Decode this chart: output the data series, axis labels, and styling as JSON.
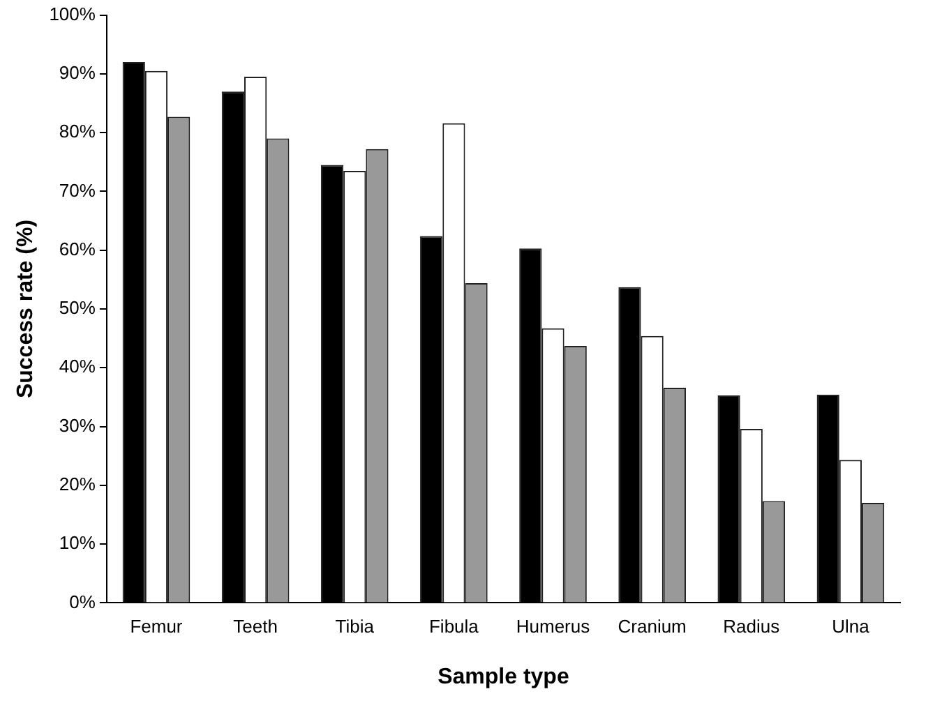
{
  "chart_data": {
    "type": "bar",
    "xlabel": "Sample type",
    "ylabel": "Success rate (%)",
    "categories": [
      "Femur",
      "Teeth",
      "Tibia",
      "Fibula",
      "Humerus",
      "Cranium",
      "Radius",
      "Ulna"
    ],
    "series": [
      {
        "color": "#000000",
        "values": [
          92,
          87,
          74.5,
          62.4,
          60.3,
          53.7,
          35.3,
          35.4
        ]
      },
      {
        "color": "#ffffff",
        "values": [
          90.5,
          89.5,
          73.5,
          81.6,
          46.7,
          45.4,
          29.6,
          24.3
        ]
      },
      {
        "color": "#999999",
        "values": [
          82.7,
          79,
          77.2,
          54.4,
          43.7,
          36.6,
          17.3,
          17
        ]
      }
    ],
    "ylim": [
      0,
      100
    ],
    "yticks": [
      {
        "value": 0,
        "label": "0%"
      },
      {
        "value": 10,
        "label": "10%"
      },
      {
        "value": 20,
        "label": "20%"
      },
      {
        "value": 30,
        "label": "30%"
      },
      {
        "value": 40,
        "label": "40%"
      },
      {
        "value": 50,
        "label": "50%"
      },
      {
        "value": 60,
        "label": "60%"
      },
      {
        "value": 70,
        "label": "70%"
      },
      {
        "value": 80,
        "label": "80%"
      },
      {
        "value": 90,
        "label": "90%"
      },
      {
        "value": 100,
        "label": "100%"
      }
    ],
    "grid": false,
    "legend": false
  }
}
